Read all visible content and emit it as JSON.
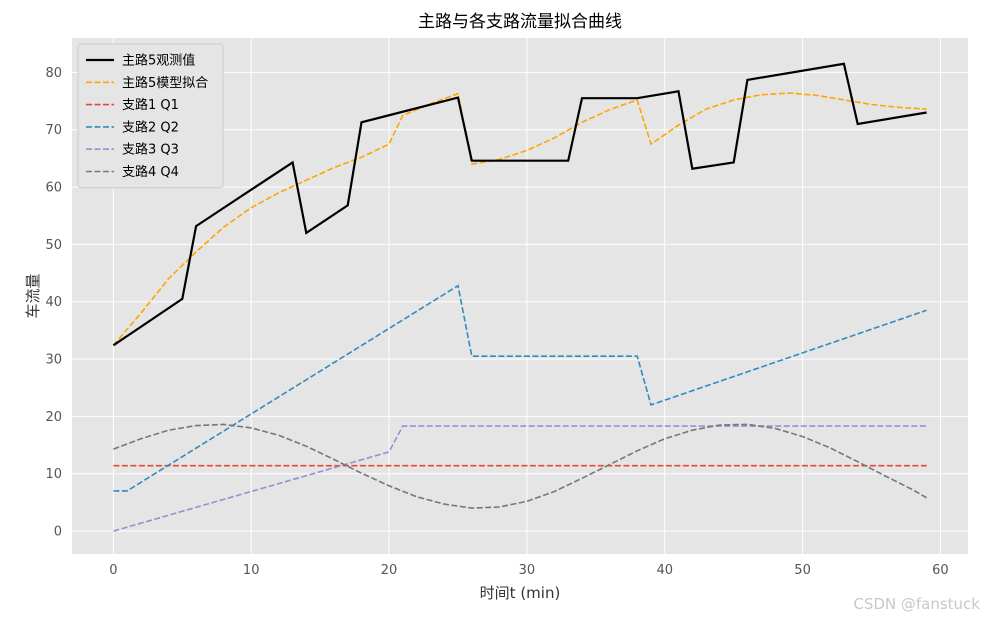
{
  "watermark": "CSDN @fanstuck",
  "chart_data": {
    "type": "line",
    "title": "主路与各支路流量拟合曲线",
    "xlabel": "时间t (min)",
    "ylabel": "车流量",
    "xlim": [
      -3,
      62
    ],
    "ylim": [
      -4,
      86
    ],
    "xticks": [
      0,
      10,
      20,
      30,
      40,
      50,
      60
    ],
    "yticks": [
      0,
      10,
      20,
      30,
      40,
      50,
      60,
      70,
      80
    ],
    "grid": true,
    "legend_position": "top-left",
    "background": "#e5e5e5",
    "series": [
      {
        "name": "主路5观测值",
        "color": "#000000",
        "style": "solid",
        "x": [
          0,
          5,
          6,
          13,
          14,
          17,
          18,
          25,
          26,
          33,
          34,
          38,
          41,
          42,
          45,
          46,
          53,
          54,
          59
        ],
        "y": [
          32.4,
          40.5,
          53.2,
          64.3,
          52.0,
          56.8,
          71.3,
          75.6,
          64.6,
          64.6,
          75.5,
          75.5,
          76.7,
          63.2,
          64.3,
          78.7,
          81.5,
          71.0,
          73.0
        ]
      },
      {
        "name": "主路5模型拟合",
        "color": "#ffa500",
        "style": "dashed",
        "x": [
          0,
          2,
          4,
          6,
          8,
          10,
          12,
          14,
          16,
          18,
          20,
          21,
          23,
          25,
          26,
          28,
          30,
          32,
          34,
          36,
          38,
          39,
          41,
          43,
          45,
          47,
          49,
          51,
          53,
          55,
          57,
          59
        ],
        "y": [
          32.4,
          38.0,
          44.0,
          48.7,
          53.0,
          56.4,
          59.0,
          61.2,
          63.4,
          65.2,
          67.5,
          72.5,
          74.5,
          76.3,
          64.0,
          64.8,
          66.4,
          68.6,
          71.3,
          73.5,
          75.2,
          67.5,
          70.8,
          73.6,
          75.2,
          76.1,
          76.4,
          76.0,
          75.2,
          74.4,
          73.9,
          73.6
        ]
      },
      {
        "name": "支路1 Q1",
        "color": "#e24a33",
        "style": "dashed",
        "x": [
          0,
          59
        ],
        "y": [
          11.4,
          11.4
        ]
      },
      {
        "name": "支路2 Q2",
        "color": "#348abd",
        "style": "dashed",
        "x": [
          0,
          1,
          25,
          26,
          38,
          39,
          59
        ],
        "y": [
          7.0,
          7.0,
          42.8,
          30.5,
          30.5,
          22.0,
          38.5
        ]
      },
      {
        "name": "支路3 Q3",
        "color": "#988ed5",
        "style": "dashed",
        "x": [
          0,
          20,
          21,
          59
        ],
        "y": [
          0.0,
          13.8,
          18.3,
          18.3
        ]
      },
      {
        "name": "支路4 Q4",
        "color": "#777777",
        "style": "dashed",
        "x": [
          0,
          2,
          4,
          6,
          8,
          10,
          12,
          14,
          16,
          18,
          20,
          22,
          24,
          26,
          28,
          30,
          32,
          34,
          36,
          38,
          40,
          42,
          44,
          46,
          48,
          50,
          52,
          54,
          56,
          58,
          59
        ],
        "y": [
          14.3,
          16.1,
          17.6,
          18.4,
          18.6,
          18.0,
          16.7,
          14.8,
          12.5,
          10.1,
          7.9,
          6.0,
          4.7,
          4.0,
          4.2,
          5.2,
          6.9,
          9.2,
          11.6,
          14.0,
          16.1,
          17.6,
          18.5,
          18.6,
          17.9,
          16.5,
          14.5,
          12.1,
          9.6,
          7.2,
          5.8
        ]
      }
    ]
  }
}
